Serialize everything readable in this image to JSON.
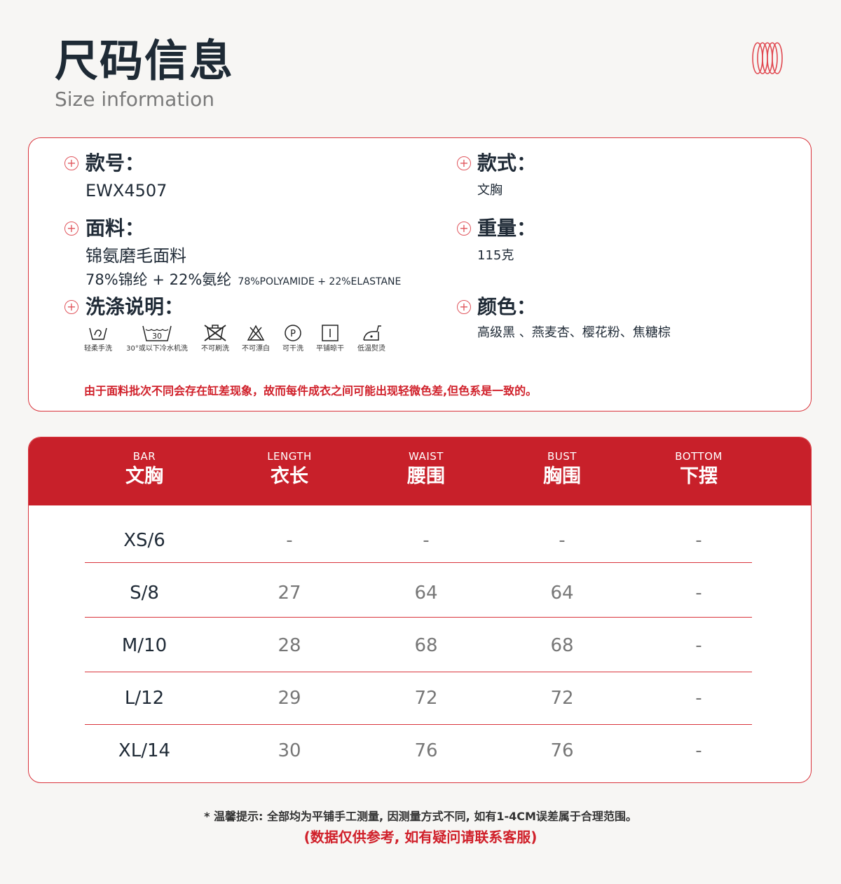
{
  "header": {
    "title": "尺码信息",
    "subtitle": "Size information"
  },
  "info": {
    "style_no_label": "款号：",
    "style_no": "EWX4507",
    "type_label": "款式：",
    "type": "文胸",
    "fabric_label": "面料：",
    "fabric": "锦氨磨毛面料",
    "fabric_cn": "78%锦纶 + 22%氨纶",
    "fabric_en": "78%POLYAMIDE + 22%ELASTANE",
    "weight_label": "重量：",
    "weight": "115克",
    "care_label": "洗涤说明：",
    "care_items": [
      {
        "icon": "hand-wash-icon",
        "label": "轻柔手洗"
      },
      {
        "icon": "machine-wash-30-icon",
        "label": "30°或以下冷水机洗",
        "temp": "30"
      },
      {
        "icon": "no-brush-wash-icon",
        "label": "不可刷洗"
      },
      {
        "icon": "no-bleach-icon",
        "label": "不可漂白"
      },
      {
        "icon": "dry-clean-icon",
        "label": "可干洗",
        "glyph": "P"
      },
      {
        "icon": "dry-flat-icon",
        "label": "平铺晾干"
      },
      {
        "icon": "low-iron-icon",
        "label": "低温熨烫"
      }
    ],
    "color_label": "颜色：",
    "colors": "高级黑 、燕麦杏、樱花粉、焦糖棕",
    "note": "由于面料批次不同会存在缸差现象，故而每件成衣之间可能出现轻微色差,但色系是一致的。"
  },
  "table": {
    "headers": [
      {
        "en": "BAR",
        "cn": "文胸"
      },
      {
        "en": "LENGTH",
        "cn": "衣长"
      },
      {
        "en": "WAIST",
        "cn": "腰围"
      },
      {
        "en": "BUST",
        "cn": "胸围"
      },
      {
        "en": "BOTTOM",
        "cn": "下摆"
      }
    ],
    "rows": [
      [
        "XS/6",
        "-",
        "-",
        "-",
        "-"
      ],
      [
        "S/8",
        "27",
        "64",
        "64",
        "-"
      ],
      [
        "M/10",
        "28",
        "68",
        "68",
        "-"
      ],
      [
        "L/12",
        "29",
        "72",
        "72",
        "-"
      ],
      [
        "XL/14",
        "30",
        "76",
        "76",
        "-"
      ]
    ]
  },
  "footer": {
    "tip": "* 温馨提示: 全部均为平铺手工测量, 因测量方式不同, 如有1-4CM误差属于合理范围。",
    "disclaimer": "(数据仅供参考, 如有疑问请联系客服)"
  },
  "colors": {
    "accent": "#c8202a",
    "background": "#f7f6f4",
    "text": "#1e2a35"
  }
}
